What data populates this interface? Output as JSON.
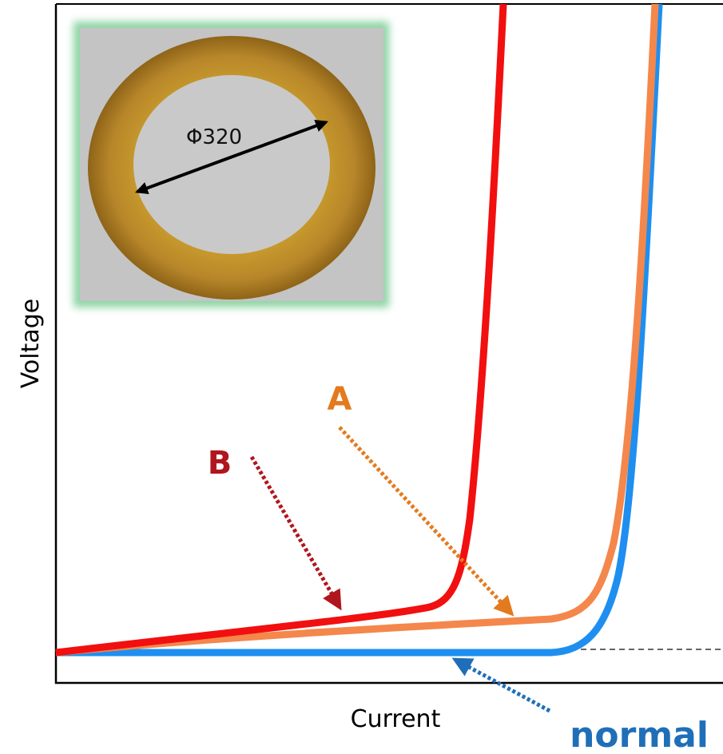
{
  "axes": {
    "y_label": "Voltage",
    "x_label": "Current"
  },
  "inset": {
    "label": "Φ320"
  },
  "curves": [
    {
      "label": "B"
    },
    {
      "label": "A"
    },
    {
      "label": "normal"
    }
  ]
}
